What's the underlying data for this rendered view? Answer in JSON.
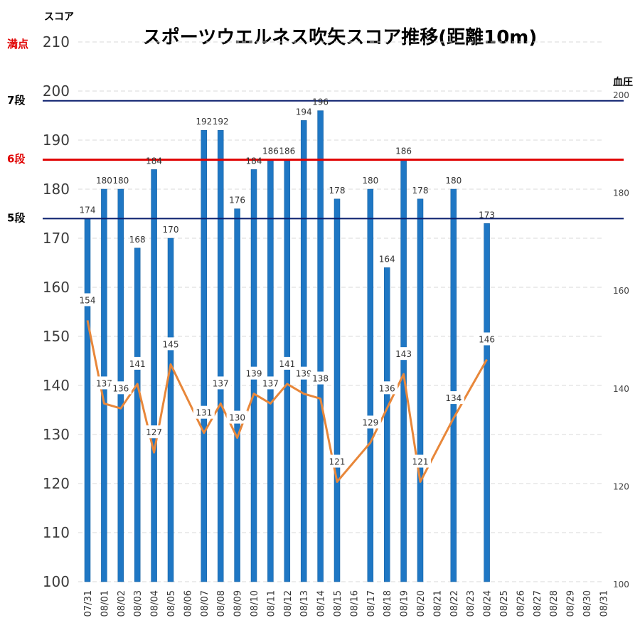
{
  "chart_data": {
    "type": "bar",
    "title": "スポーツウエルネス吹矢スコア推移(距離10m)",
    "ylabel": "スコア",
    "y2label": "血圧",
    "ylim": [
      100,
      210
    ],
    "y2lim": [
      100,
      210
    ],
    "yticks": [
      100,
      110,
      120,
      130,
      140,
      150,
      160,
      170,
      180,
      190,
      200,
      210
    ],
    "y2ticks": [
      100,
      120,
      140,
      160,
      180,
      200
    ],
    "grid": true,
    "categories": [
      "07/31",
      "08/01",
      "08/02",
      "08/03",
      "08/04",
      "08/05",
      "08/06",
      "08/07",
      "08/08",
      "08/09",
      "08/10",
      "08/11",
      "08/12",
      "08/13",
      "08/14",
      "08/15",
      "08/16",
      "08/17",
      "08/18",
      "08/19",
      "08/20",
      "08/21",
      "08/22",
      "08/23",
      "08/24",
      "08/25",
      "08/26",
      "08/27",
      "08/28",
      "08/29",
      "08/30",
      "08/31"
    ],
    "series": [
      {
        "name": "スコア",
        "kind": "bar",
        "color": "#1f77c4",
        "values": [
          174,
          180,
          180,
          168,
          184,
          170,
          null,
          192,
          192,
          176,
          184,
          186,
          186,
          194,
          196,
          178,
          null,
          180,
          164,
          186,
          178,
          null,
          180,
          null,
          173,
          null,
          null,
          null,
          null,
          null,
          null,
          null
        ]
      },
      {
        "name": "血圧",
        "kind": "line",
        "color": "#e8873a",
        "values": [
          154,
          137,
          136,
          141,
          127,
          145,
          null,
          131,
          137,
          130,
          139,
          137,
          141,
          139,
          138,
          121,
          null,
          129,
          136,
          143,
          121,
          null,
          134,
          null,
          146,
          null,
          null,
          null,
          null,
          null,
          null,
          null
        ]
      }
    ],
    "reference_lines": [
      {
        "label": "満点",
        "value": 210,
        "color": "#e00000",
        "line": false
      },
      {
        "label": "7段",
        "value": 198,
        "color": "#000000",
        "line_color": "#0a1f6e",
        "line": true
      },
      {
        "label": "6段",
        "value": 186,
        "color": "#e00000",
        "line_color": "#e00000",
        "line": true
      },
      {
        "label": "5段",
        "value": 174,
        "color": "#000000",
        "line_color": "#0a1f6e",
        "line": true
      }
    ]
  }
}
